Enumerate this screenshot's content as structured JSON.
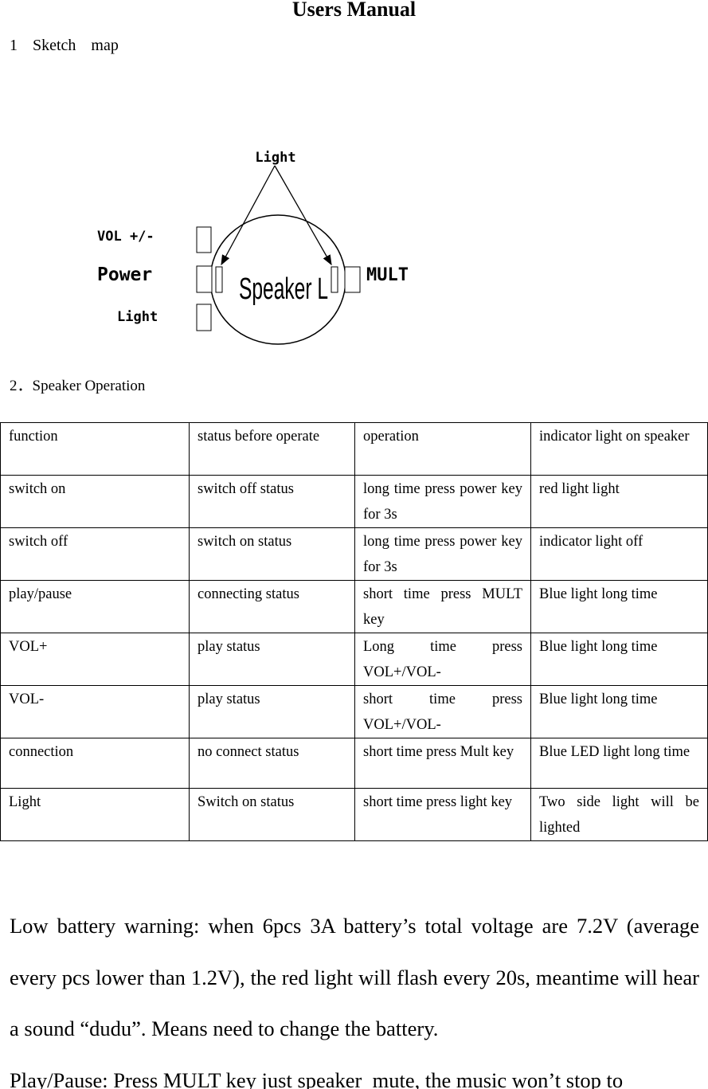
{
  "title": "Users Manual",
  "section1": "1 Sketch map",
  "diagram": {
    "top_light": "Light",
    "vol": "VOL +/-",
    "power": "Power",
    "light": "Light",
    "speaker": "Speaker L",
    "mult": "MULT"
  },
  "section2": "2．Speaker Operation",
  "table": {
    "headers": [
      "function",
      "status before operate",
      "operation",
      "indicator light on speaker"
    ],
    "rows": [
      [
        "switch on",
        "switch off status",
        "long time press power key for 3s",
        "red light light"
      ],
      [
        "switch off",
        "switch on status",
        "long time press power key for 3s",
        "indicator light off"
      ],
      [
        "play/pause",
        "connecting status",
        "short time press MULT key",
        "Blue light long time"
      ],
      [
        "VOL+",
        "play status",
        "Long time press VOL+/VOL-",
        "Blue light long time"
      ],
      [
        "VOL-",
        "play status",
        "short time press VOL+/VOL-",
        "Blue light long time"
      ],
      [
        "connection",
        "no connect status",
        "short time press Mult key",
        "Blue LED light long time"
      ],
      [
        "Light",
        "Switch on status",
        "short time press light key",
        "Two side light will be lighted"
      ]
    ]
  },
  "paragraphs": [
    "Low battery warning: when 6pcs 3A battery’s total voltage are 7.2V (average every pcs lower than 1.2V), the red light will flash every 20s, meantime will hear a sound “dudu”. Means need to change the battery.",
    "Play/Pause: Press MULT key just speaker  mute, the music won’t stop to"
  ]
}
